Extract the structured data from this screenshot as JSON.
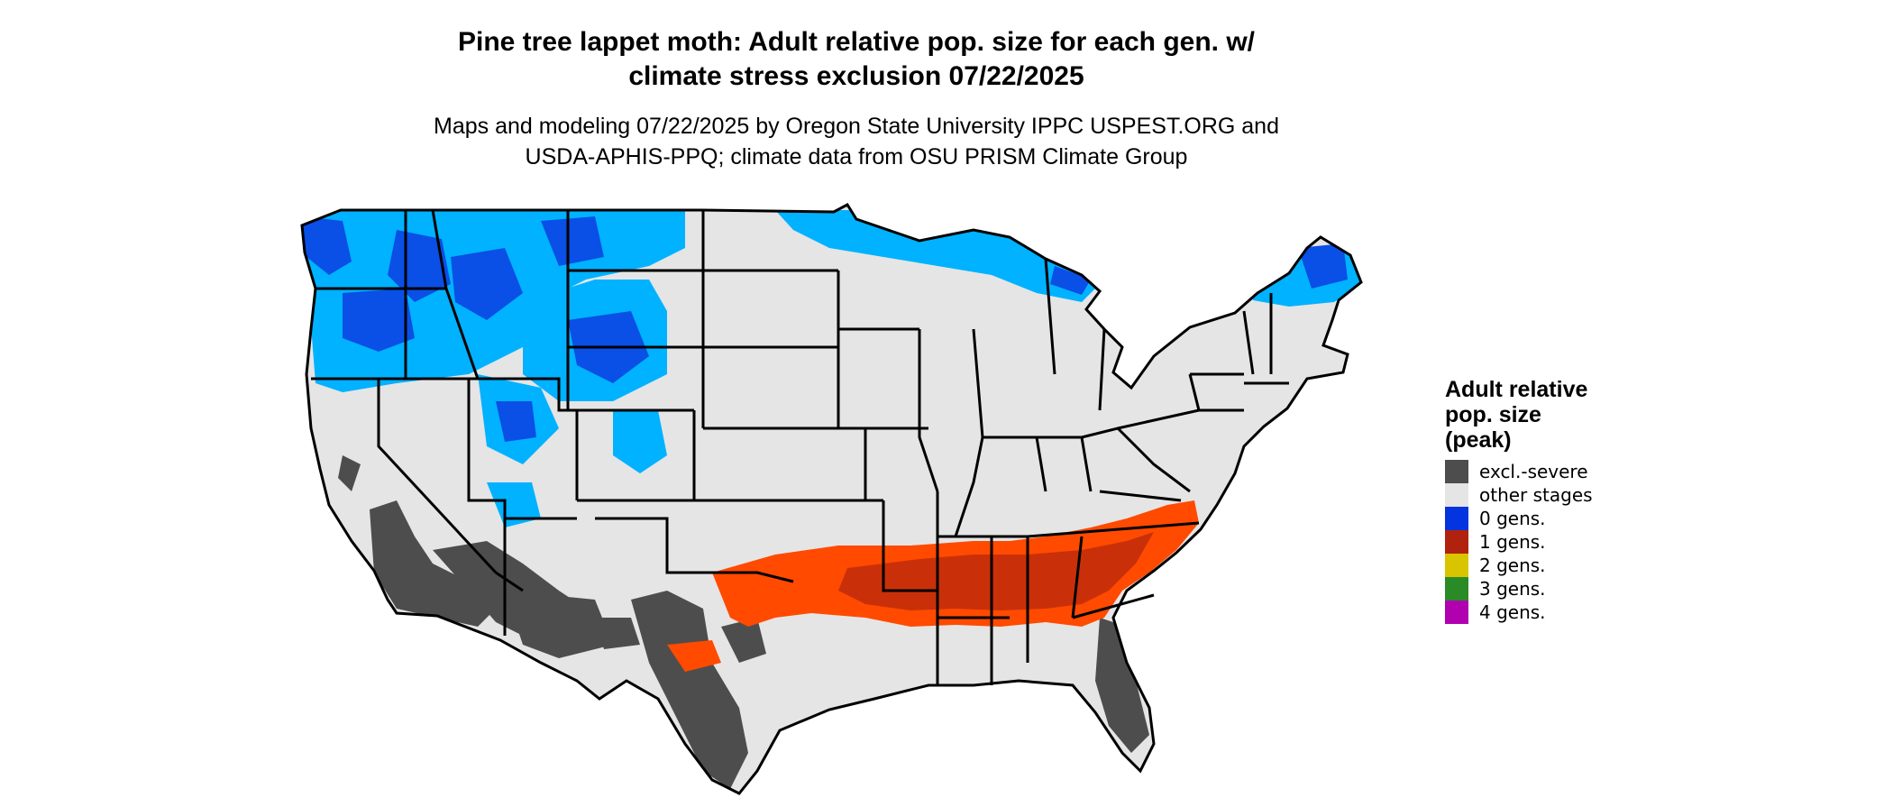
{
  "title": {
    "line1": "Pine tree lappet moth: Adult relative pop. size for each gen. w/",
    "line2": "climate stress exclusion 07/22/2025"
  },
  "subtitle": {
    "line1": "Maps and modeling 07/22/2025 by Oregon State University IPPC USPEST.ORG and",
    "line2": "USDA-APHIS-PPQ; climate data from OSU PRISM Climate Group"
  },
  "map": {
    "region": "contiguous-united-states",
    "colors": {
      "excl_severe": "#4d4d4d",
      "other_stages": "#e5e5e5",
      "zero_gens_light": "#00b2ff",
      "zero_gens_dark": "#0a4fe6",
      "one_gen_bright": "#ff4a00",
      "one_gen_dark": "#c9300a",
      "border": "#000000"
    }
  },
  "legend": {
    "title_line1": "Adult relative",
    "title_line2": "pop. size",
    "title_line3": "(peak)",
    "items": [
      {
        "label": "excl.-severe",
        "color": "#4d4d4d"
      },
      {
        "label": "other stages",
        "color": "#e5e5e5"
      },
      {
        "label": "0 gens.",
        "color": "#0433e0"
      },
      {
        "label": "1 gens.",
        "color": "#b0220e"
      },
      {
        "label": "2 gens.",
        "color": "#d9c400"
      },
      {
        "label": "3 gens.",
        "color": "#2a8a26"
      },
      {
        "label": "4 gens.",
        "color": "#b000b0"
      }
    ]
  }
}
